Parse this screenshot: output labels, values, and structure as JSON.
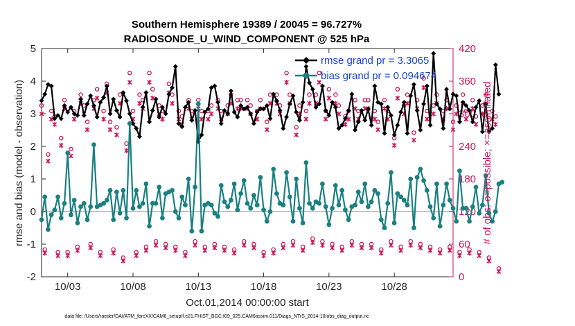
{
  "chart_data": {
    "type": "line",
    "title": "Southern Hemisphere 19389 / 20045 = 96.727%",
    "subtitle": "RADIOSONDE_U_WIND_COMPONENT @ 525 hPa",
    "xlabel": "Oct.01,2014 00:00:00 start",
    "ylabel": "rmse and bias (model - observation)",
    "ylabel_right": "# of obs: o=possible; ×=assimilated",
    "footnote": "data file: /Users/raeder/DAI/ATM_forcXX/CAM6_setup/f.e21.FHIST_BGC.f09_025.CAM6assim.011/Diags_NTrS_2014-10/obs_diag_output.nc",
    "xlim": [
      1.0,
      32.5
    ],
    "ylim": [
      -2,
      5
    ],
    "ylim_right": [
      0,
      420
    ],
    "x_ticks": [
      3,
      8,
      13,
      18,
      23,
      28
    ],
    "x_tick_labels": [
      "10/03",
      "10/08",
      "10/13",
      "10/18",
      "10/23",
      "10/28"
    ],
    "y_ticks": [
      -2,
      -1,
      0,
      1,
      2,
      3,
      4,
      5
    ],
    "y_tick_labels": [
      "-2",
      "-1",
      "0",
      "1",
      "2",
      "3",
      "4",
      "5"
    ],
    "y_right_ticks": [
      0,
      60,
      120,
      180,
      240,
      300,
      360,
      420
    ],
    "y_right_tick_labels": [
      "0",
      "60",
      "120",
      "180",
      "240",
      "300",
      "360",
      "420"
    ],
    "grid": false,
    "legend_position": "top-right",
    "zero_line": 0,
    "x_start": 1.0,
    "x_step": 0.25,
    "series": [
      {
        "name": "rmse grand pr = 3.3065",
        "color": "#000000",
        "marker": "diamond",
        "axis": "left",
        "values": [
          3.4,
          3.6,
          3.9,
          3.85,
          2.85,
          2.95,
          2.85,
          3.25,
          3.05,
          3.2,
          3.0,
          2.95,
          3.45,
          2.95,
          3.3,
          3.55,
          3.25,
          2.9,
          3.35,
          3.5,
          3.85,
          3.0,
          3.45,
          3.1,
          2.9,
          3.65,
          3.4,
          3.0,
          2.7,
          2.55,
          2.3,
          3.2,
          3.65,
          2.75,
          3.1,
          3.45,
          2.9,
          3.2,
          3.0,
          3.6,
          3.8,
          4.45,
          2.7,
          2.6,
          3.2,
          3.35,
          2.8,
          3.1,
          2.15,
          2.35,
          3.05,
          3.15,
          3.8,
          3.85,
          3.35,
          2.7,
          3.1,
          3.0,
          3.7,
          3.05,
          2.9,
          3.25,
          3.15,
          3.2,
          3.0,
          2.7,
          3.05,
          3.15,
          3.15,
          3.25,
          2.85,
          3.6,
          3.4,
          3.1,
          2.55,
          2.9,
          3.3,
          3.55,
          3.05,
          2.8,
          3.35,
          4.45,
          3.95,
          3.75,
          3.2,
          3.3,
          3.85,
          3.1,
          2.95,
          3.35,
          3.2,
          2.55,
          2.65,
          2.85,
          3.1,
          3.6,
          2.5,
          2.75,
          3.1,
          2.8,
          3.15,
          2.65,
          3.85,
          3.35,
          3.3,
          2.4,
          3.2,
          2.95,
          2.35,
          2.65,
          3.05,
          3.35,
          2.4,
          3.55,
          3.9,
          3.1,
          2.5,
          3.3,
          3.85,
          2.65,
          4.85,
          3.3,
          3.15,
          2.55,
          3.75,
          3.15,
          3.6,
          3.55,
          2.75,
          3.35,
          3.25,
          3.1,
          2.75,
          3.2,
          3.4,
          2.45,
          3.3,
          2.45,
          2.55,
          4.5,
          3.6
        ]
      },
      {
        "name": "bias grand pr = 0.094674",
        "color": "#1a8080",
        "marker": "circle",
        "axis": "left",
        "values": [
          -0.25,
          0.45,
          -0.55,
          -0.1,
          0.05,
          0.45,
          -0.2,
          0.25,
          1.8,
          -0.1,
          0.35,
          -0.35,
          0.15,
          0.25,
          -0.25,
          0.15,
          2.05,
          0.15,
          0.2,
          0.25,
          0.35,
          0.65,
          -0.25,
          0.6,
          -0.05,
          0.65,
          -0.2,
          2.7,
          0.1,
          0.65,
          0.15,
          0.25,
          0.85,
          -0.45,
          0.25,
          0.25,
          0.75,
          -0.2,
          0.55,
          0.6,
          0.65,
          0.0,
          -0.2,
          0.45,
          0.2,
          1.0,
          -0.6,
          0.75,
          3.3,
          -0.6,
          0.2,
          0.25,
          0.2,
          -0.05,
          -0.15,
          0.8,
          0.3,
          0.15,
          0.35,
          0.85,
          0.05,
          0.55,
          0.95,
          0.25,
          0.1,
          0.5,
          0.2,
          1.05,
          0.05,
          -0.3,
          0.0,
          1.3,
          0.55,
          0.25,
          0.2,
          1.2,
          0.45,
          -0.3,
          1.0,
          0.1,
          -0.35,
          1.5,
          0.25,
          0.1,
          0.3,
          0.25,
          0.85,
          0.15,
          -0.4,
          0.1,
          0.8,
          0.2,
          0.65,
          0.05,
          -0.25,
          0.15,
          0.2,
          0.6,
          0.3,
          0.85,
          0.15,
          0.3,
          0.65,
          0.55,
          -0.25,
          -0.5,
          0.25,
          1.2,
          -0.35,
          0.55,
          0.45,
          0.35,
          0.2,
          1.0,
          -0.5,
          1.05,
          1.3,
          0.95,
          0.65,
          0.15,
          -0.2,
          0.85,
          -0.45,
          0.2,
          0.85,
          0.35,
          0.1,
          -0.3,
          1.25,
          0.1,
          0.1,
          -0.3,
          0.15,
          0.75,
          -0.05,
          0.2,
          1.1,
          -0.05,
          -0.3,
          0.0,
          0.85,
          0.9
        ]
      }
    ],
    "possible_counts": [
      310,
      45,
      220,
      300,
      290,
      40,
      250,
      320,
      40,
      230,
      300,
      50,
      330,
      310,
      280,
      55,
      320,
      340,
      40,
      300,
      350,
      280,
      45,
      270,
      330,
      30,
      240,
      370,
      300,
      40,
      330,
      320,
      50,
      370,
      340,
      60,
      310,
      300,
      55,
      350,
      330,
      50,
      300,
      290,
      40,
      320,
      300,
      60,
      320,
      300,
      50,
      300,
      310,
      55,
      320,
      300,
      50,
      310,
      330,
      45,
      320,
      320,
      60,
      320,
      310,
      55,
      300,
      320,
      40,
      280,
      330,
      45,
      330,
      310,
      55,
      370,
      330,
      60,
      270,
      310,
      50,
      300,
      330,
      65,
      330,
      370,
      60,
      300,
      340,
      55,
      330,
      310,
      50,
      290,
      300,
      60,
      320,
      300,
      55,
      320,
      320,
      55,
      300,
      280,
      45,
      320,
      300,
      60,
      250,
      340,
      50,
      310,
      330,
      60,
      260,
      320,
      55,
      360,
      300,
      50,
      310,
      330,
      45,
      300,
      320,
      50,
      280,
      310,
      40,
      330,
      300,
      45,
      320,
      290,
      40,
      310,
      330,
      30,
      300,
      290,
      10
    ]
  }
}
